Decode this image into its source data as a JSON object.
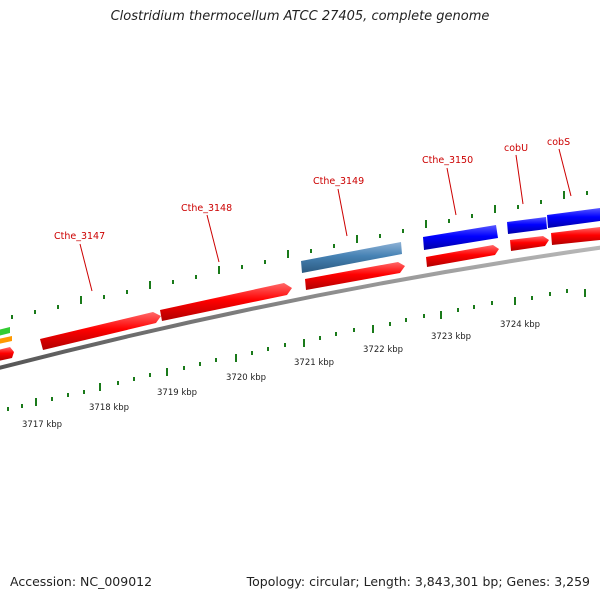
{
  "title": "Clostridium thermocellum ATCC 27405, complete genome",
  "footer": {
    "accession": "Accession: NC_009012",
    "summary": "Topology: circular; Length: 3,843,301 bp; Genes: 3,259"
  },
  "colors": {
    "forward_gene": "#ff0000",
    "reverse_gene": "#0000ff",
    "other_gene": "#4682b4",
    "backbone": "#808080",
    "tick": "#1a7a1a",
    "label": "#cc0000"
  },
  "gene_labels": [
    {
      "text": "Cthe_3147"
    },
    {
      "text": "Cthe_3148"
    },
    {
      "text": "Cthe_3149"
    },
    {
      "text": "Cthe_3150"
    },
    {
      "text": "cobU"
    },
    {
      "text": "cobS"
    }
  ],
  "scale_labels": [
    "3717 kbp",
    "3718 kbp",
    "3719 kbp",
    "3720 kbp",
    "3721 kbp",
    "3722 kbp",
    "3723 kbp",
    "3724 kbp"
  ]
}
